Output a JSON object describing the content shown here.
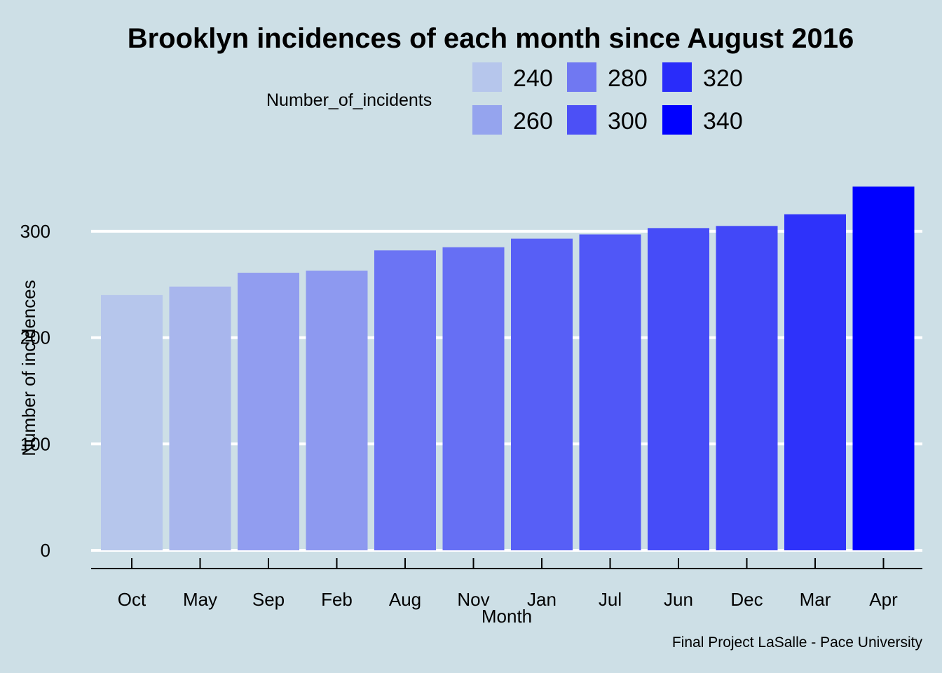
{
  "chart_data": {
    "type": "bar",
    "title": "Brooklyn incidences of each month since August 2016",
    "xlabel": "Month",
    "ylabel": "Number of incidences",
    "caption": "Final Project LaSalle - Pace University",
    "categories": [
      "Oct",
      "May",
      "Sep",
      "Feb",
      "Aug",
      "Nov",
      "Jan",
      "Jul",
      "Jun",
      "Dec",
      "Mar",
      "Apr"
    ],
    "values": [
      240,
      248,
      261,
      263,
      282,
      285,
      293,
      297,
      303,
      305,
      316,
      342
    ],
    "ylim": [
      0,
      360
    ],
    "yticks": [
      0,
      100,
      200,
      300
    ],
    "grid": true,
    "background_color": "#cddfe6",
    "color_scale": {
      "low_value": 240,
      "high_value": 342,
      "low_color": "#b6c6ec",
      "high_color": "#0000ff"
    },
    "legend": {
      "title": "Number_of_incidents",
      "placement": "top",
      "entries": [
        {
          "label": "240",
          "color": "#b6c6ec"
        },
        {
          "label": "260",
          "color": "#95a4ee"
        },
        {
          "label": "280",
          "color": "#7078f2"
        },
        {
          "label": "300",
          "color": "#4c50f6"
        },
        {
          "label": "320",
          "color": "#292cfa"
        },
        {
          "label": "340",
          "color": "#0000ff"
        }
      ]
    }
  }
}
